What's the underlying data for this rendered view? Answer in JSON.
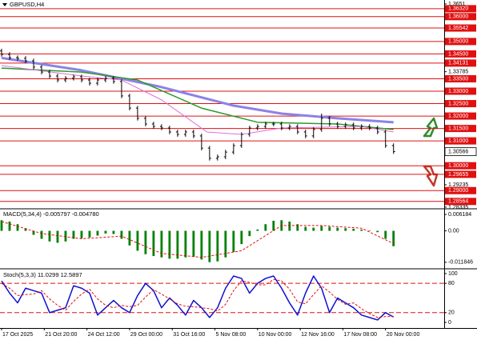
{
  "chart_data": [
    {
      "type": "ohlc",
      "title": "GBPUSD,H4",
      "x": [
        0,
        3,
        6,
        9,
        12,
        15,
        18,
        21,
        24,
        27,
        30,
        33,
        36,
        39,
        42,
        45,
        48,
        51,
        54,
        57,
        60,
        63,
        66,
        69,
        72,
        75,
        78,
        81,
        84,
        87,
        90,
        93,
        96,
        99,
        102,
        105,
        108,
        111,
        114,
        117,
        120,
        123,
        126,
        129,
        132,
        135,
        138,
        141,
        144,
        147
      ],
      "open": [
        1.3462,
        1.3448,
        1.3435,
        1.3432,
        1.3422,
        1.3397,
        1.3377,
        1.3361,
        1.3345,
        1.3352,
        1.3358,
        1.3345,
        1.3332,
        1.3345,
        1.3352,
        1.3339,
        1.3281,
        1.3232,
        1.3191,
        1.3168,
        1.3158,
        1.3152,
        1.3136,
        1.3126,
        1.3136,
        1.312,
        1.3071,
        1.303,
        1.3036,
        1.3055,
        1.3081,
        1.3126,
        1.3152,
        1.3158,
        1.3168,
        1.3168,
        1.3152,
        1.3158,
        1.3136,
        1.312,
        1.3146,
        1.3191,
        1.3168,
        1.3158,
        1.3165,
        1.3152,
        1.3158,
        1.3152,
        1.3136,
        1.3081
      ],
      "high": [
        1.3471,
        1.3457,
        1.3444,
        1.3441,
        1.3431,
        1.3406,
        1.3386,
        1.337,
        1.3361,
        1.3367,
        1.3367,
        1.3354,
        1.3354,
        1.3361,
        1.3361,
        1.3348,
        1.329,
        1.3241,
        1.32,
        1.3177,
        1.3167,
        1.3161,
        1.3145,
        1.3145,
        1.3145,
        1.3129,
        1.308,
        1.3045,
        1.3064,
        1.309,
        1.3135,
        1.3161,
        1.3167,
        1.3177,
        1.3177,
        1.3177,
        1.3167,
        1.3167,
        1.3145,
        1.3155,
        1.321,
        1.32,
        1.3177,
        1.3174,
        1.3174,
        1.3167,
        1.3167,
        1.3161,
        1.3145,
        1.309
      ],
      "low": [
        1.3439,
        1.3426,
        1.3423,
        1.3413,
        1.3388,
        1.3368,
        1.3352,
        1.3336,
        1.3336,
        1.3343,
        1.3336,
        1.3323,
        1.3323,
        1.3336,
        1.333,
        1.3272,
        1.3223,
        1.3182,
        1.3159,
        1.3149,
        1.3143,
        1.3127,
        1.3117,
        1.3117,
        1.3111,
        1.3062,
        1.3021,
        1.3021,
        1.3027,
        1.3046,
        1.3072,
        1.3117,
        1.3143,
        1.3149,
        1.3159,
        1.3143,
        1.3143,
        1.3127,
        1.3111,
        1.3111,
        1.3137,
        1.3159,
        1.3149,
        1.3149,
        1.3143,
        1.3143,
        1.3143,
        1.3127,
        1.3072,
        1.3048
      ],
      "close": [
        1.3448,
        1.3435,
        1.3432,
        1.3422,
        1.3397,
        1.3377,
        1.3361,
        1.3345,
        1.3352,
        1.3358,
        1.3345,
        1.3332,
        1.3345,
        1.3352,
        1.3339,
        1.3281,
        1.3232,
        1.3191,
        1.3168,
        1.3158,
        1.3152,
        1.3136,
        1.3126,
        1.3136,
        1.312,
        1.3071,
        1.303,
        1.3036,
        1.3055,
        1.3081,
        1.3126,
        1.3152,
        1.3158,
        1.3168,
        1.3168,
        1.3152,
        1.3158,
        1.3136,
        1.312,
        1.3146,
        1.3191,
        1.3168,
        1.3158,
        1.3165,
        1.3152,
        1.3158,
        1.3152,
        1.3136,
        1.3081,
        1.3057
      ],
      "bar_color": "#000000",
      "lines": [
        {
          "color": "#8c82e6",
          "width": 3,
          "x": [
            0,
            30,
            59,
            87,
            105,
            126,
            147
          ],
          "values": [
            1.3434,
            1.3384,
            1.3319,
            1.3242,
            1.321,
            1.3191,
            1.3175
          ]
        },
        {
          "color": "#2e9a2e",
          "width": 1.5,
          "x": [
            0,
            30,
            51,
            75,
            96,
            126,
            147
          ],
          "values": [
            1.3393,
            1.3377,
            1.3345,
            1.3232,
            1.3175,
            1.3168,
            1.3146
          ]
        },
        {
          "color": "#e06fd8",
          "width": 1,
          "x": [
            0,
            30,
            45,
            60,
            77,
            90,
            105,
            135,
            147
          ],
          "values": [
            1.3403,
            1.3361,
            1.3345,
            1.3265,
            1.3136,
            1.3126,
            1.3152,
            1.3158,
            1.3136
          ]
        }
      ],
      "xlim": [
        -0.6,
        166
      ],
      "ylim": [
        1.283,
        1.3667
      ],
      "yticks": [
        1.3651,
        1.33785,
        1.29235,
        1.28335
      ],
      "levels": [
        {
          "value": 1.3632,
          "label": "1.36320"
        },
        {
          "value": 1.36,
          "label": "1.36000"
        },
        {
          "value": 1.35542,
          "label": "1.35542"
        },
        {
          "value": 1.35,
          "label": "1.35000"
        },
        {
          "value": 1.345,
          "label": "1.34500"
        },
        {
          "value": 1.34131,
          "label": "1.34131"
        },
        {
          "value": 1.335,
          "label": "1.33500"
        },
        {
          "value": 1.33,
          "label": "1.33000"
        },
        {
          "value": 1.325,
          "label": "1.32500"
        },
        {
          "value": 1.32,
          "label": "1.32000"
        },
        {
          "value": 1.315,
          "label": "1.31500"
        },
        {
          "value": 1.31,
          "label": "1.31000"
        },
        {
          "value": 1.3,
          "label": "1.30000"
        },
        {
          "value": 1.29655,
          "label": "1.29655"
        },
        {
          "value": 1.29,
          "label": "1.29000"
        },
        {
          "value": 1.28564,
          "label": "1.28564"
        }
      ],
      "level_color": "#e01010",
      "last_price": 1.30566,
      "xticks": [
        {
          "value": 0,
          "label": "17 Oct 2025"
        },
        {
          "value": 16,
          "label": "21 Oct 20:00"
        },
        {
          "value": 32,
          "label": "24 Oct 12:00"
        },
        {
          "value": 48,
          "label": "29 Oct 00:00"
        },
        {
          "value": 64,
          "label": "31 Oct 16:00"
        },
        {
          "value": 80,
          "label": "5 Nov 08:00"
        },
        {
          "value": 96,
          "label": "10 Nov 00:00"
        },
        {
          "value": 112,
          "label": "12 Nov 16:00"
        },
        {
          "value": 128,
          "label": "17 Nov 08:00"
        },
        {
          "value": 144,
          "label": "20 Nov 00:00"
        }
      ]
    },
    {
      "type": "macd",
      "title": "MACD(5,34,4) -0.005797 -0.004780",
      "values": [
        0.004,
        0.0035,
        0.0025,
        0.001,
        -0.0015,
        -0.003,
        -0.004,
        -0.0045,
        -0.004,
        -0.003,
        -0.0028,
        -0.0025,
        -0.0018,
        -0.001,
        -0.0012,
        -0.003,
        -0.0055,
        -0.0075,
        -0.0088,
        -0.0095,
        -0.01,
        -0.0105,
        -0.0105,
        -0.01,
        -0.0098,
        -0.0108,
        -0.0118,
        -0.0115,
        -0.01,
        -0.008,
        -0.005,
        -0.002,
        0.0005,
        0.0025,
        0.0038,
        0.004,
        0.0035,
        0.0025,
        0.0015,
        0.0012,
        0.0018,
        0.0015,
        0.0012,
        0.001,
        0.0008,
        0.0005,
        0.0002,
        -0.0005,
        -0.003,
        -0.0058
      ],
      "color": "#008000",
      "signal": {
        "color": "#e01010",
        "dashed": true,
        "x": [
          0,
          15,
          30,
          45,
          60,
          75,
          90,
          105,
          120,
          135,
          147
        ],
        "values": [
          0.0035,
          -0.001,
          -0.003,
          -0.002,
          -0.0085,
          -0.01,
          -0.0075,
          0.002,
          0.002,
          0.001,
          -0.0048
        ]
      },
      "ylim": [
        -0.0137,
        0.008
      ],
      "yticks": [
        0.006184,
        {
          "value": 0,
          "label": "0.00"
        },
        -0.011846
      ]
    },
    {
      "type": "stochastic",
      "title": "Stoch(5,3,3) 11.0299 12.5897",
      "lines": [
        {
          "color": "#1010d0",
          "width": 1.5,
          "dashed": false,
          "values": [
            85,
            60,
            40,
            70,
            65,
            60,
            20,
            25,
            30,
            75,
            70,
            60,
            15,
            30,
            45,
            30,
            20,
            55,
            80,
            65,
            30,
            50,
            35,
            15,
            45,
            30,
            10,
            30,
            70,
            95,
            90,
            60,
            80,
            90,
            95,
            70,
            40,
            15,
            60,
            95,
            70,
            20,
            50,
            40,
            30,
            15,
            10,
            5,
            20,
            11.0299
          ]
        },
        {
          "color": "#e01010",
          "width": 1,
          "dashed": true,
          "values": [
            80,
            70,
            55,
            57,
            58,
            65,
            48,
            35,
            25,
            43,
            58,
            68,
            48,
            35,
            30,
            35,
            32,
            35,
            52,
            67,
            58,
            48,
            38,
            33,
            32,
            30,
            28,
            23,
            37,
            65,
            85,
            82,
            77,
            77,
            88,
            85,
            68,
            42,
            38,
            57,
            75,
            62,
            47,
            37,
            40,
            28,
            18,
            10,
            12,
            12.5897
          ]
        }
      ],
      "levels": [
        80,
        20
      ],
      "level_color": "#e01010",
      "ylim": [
        -11.5,
        106.5
      ],
      "yticks": [
        100,
        80,
        20,
        0
      ]
    }
  ]
}
